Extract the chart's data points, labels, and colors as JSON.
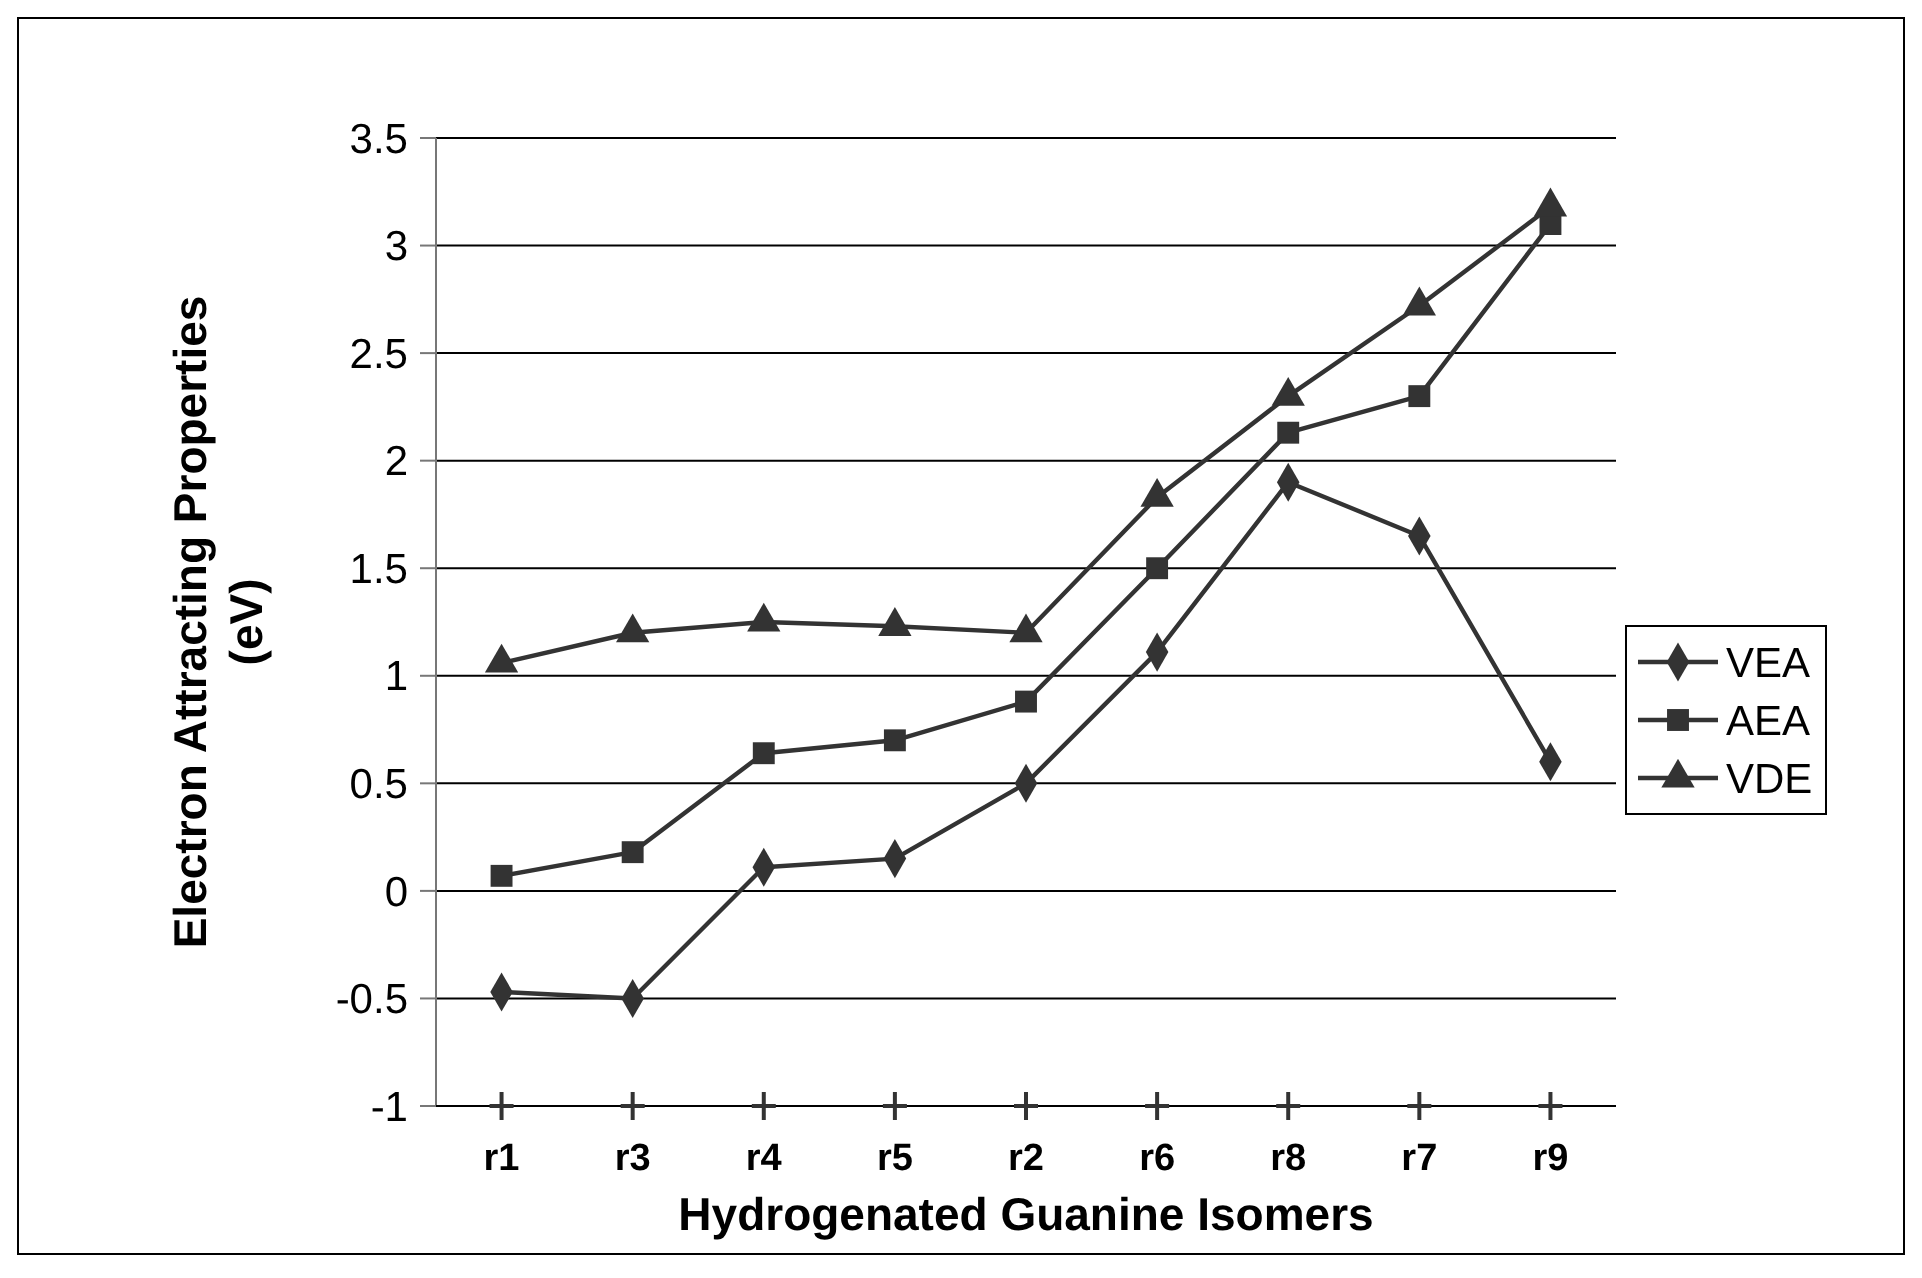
{
  "chart_data": {
    "type": "line",
    "xlabel": "Hydrogenated Guanine Isomers",
    "ylabel": "Electron Attracting Properties (eV)",
    "categories": [
      "r1",
      "r3",
      "r4",
      "r5",
      "r2",
      "r6",
      "r8",
      "r7",
      "r9"
    ],
    "series": [
      {
        "name": "VEA",
        "color": "#333333",
        "marker": "diamond",
        "values": [
          -0.47,
          -0.5,
          0.11,
          0.15,
          0.5,
          1.11,
          1.9,
          1.65,
          0.6
        ]
      },
      {
        "name": "AEA",
        "color": "#333333",
        "marker": "square",
        "values": [
          0.07,
          0.18,
          0.64,
          0.7,
          0.88,
          1.5,
          2.13,
          2.3,
          3.1
        ]
      },
      {
        "name": "VDE",
        "color": "#333333",
        "marker": "triangle",
        "values": [
          1.06,
          1.2,
          1.25,
          1.23,
          1.2,
          1.83,
          2.3,
          2.72,
          3.18
        ]
      }
    ],
    "ylim": [
      -1,
      3.5
    ],
    "yticks": [
      -1,
      -0.5,
      0,
      0.5,
      1,
      1.5,
      2,
      2.5,
      3,
      3.5
    ],
    "grid": "y",
    "legend": "right",
    "line_style": "solid"
  }
}
